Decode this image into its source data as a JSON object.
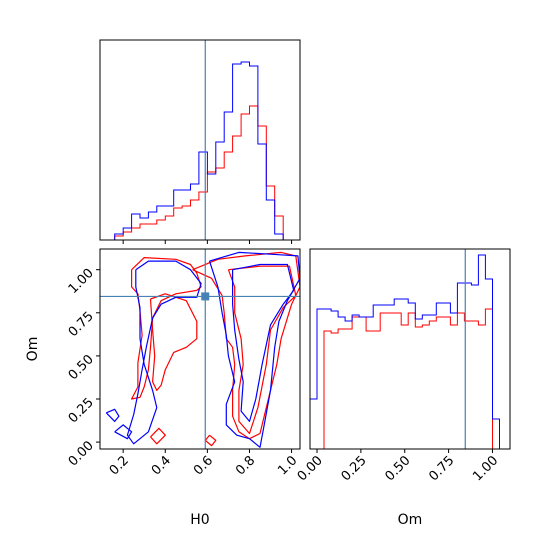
{
  "chart_data": {
    "type": "corner",
    "parameters": [
      "H0",
      "Om"
    ],
    "truths": {
      "H0": 0.59,
      "Om": 0.845
    },
    "colors": {
      "series_a": "#ff0000",
      "series_b": "#0000ff",
      "truth": "#4682b4"
    },
    "panels": [
      {
        "id": "hist_H0",
        "type": "histogram",
        "parameter": "H0",
        "xlim": [
          0.09,
          1.04
        ],
        "ylim": [
          0,
          1.0
        ],
        "xticks": [
          0.2,
          0.4,
          0.6,
          0.8,
          1.0
        ],
        "bins": [
          0.12,
          0.16,
          0.2,
          0.24,
          0.28,
          0.32,
          0.36,
          0.4,
          0.44,
          0.48,
          0.52,
          0.56,
          0.6,
          0.64,
          0.68,
          0.72,
          0.76,
          0.8,
          0.84,
          0.88,
          0.92,
          0.96,
          1.0,
          1.04
        ],
        "series": [
          {
            "values": [
              0.0,
              0.02,
              0.04,
              0.06,
              0.08,
              0.08,
              0.1,
              0.12,
              0.16,
              0.17,
              0.2,
              0.24,
              0.34,
              0.36,
              0.44,
              0.52,
              0.63,
              0.67,
              0.57,
              0.27,
              0.12,
              0.0,
              0.0
            ]
          },
          {
            "values": [
              0.0,
              0.03,
              0.06,
              0.13,
              0.11,
              0.14,
              0.17,
              0.17,
              0.25,
              0.25,
              0.28,
              0.44,
              0.33,
              0.49,
              0.64,
              0.88,
              0.89,
              0.87,
              0.48,
              0.2,
              0.03,
              0.0,
              0.0
            ]
          }
        ]
      },
      {
        "id": "hist_Om",
        "type": "histogram",
        "parameter": "Om",
        "xlim": [
          -0.04,
          1.1
        ],
        "ylim": [
          0,
          1.0
        ],
        "xticks": [
          "0.00",
          "0.25",
          "0.50",
          "0.75",
          "1.00"
        ],
        "xtick_values": [
          0.0,
          0.25,
          0.5,
          0.75,
          1.0
        ],
        "xlabel": "Om",
        "bins": [
          -0.04,
          0.0,
          0.04,
          0.08,
          0.12,
          0.16,
          0.2,
          0.24,
          0.28,
          0.32,
          0.36,
          0.4,
          0.44,
          0.48,
          0.52,
          0.56,
          0.6,
          0.64,
          0.68,
          0.72,
          0.76,
          0.8,
          0.84,
          0.88,
          0.92,
          0.96,
          1.0,
          1.04,
          1.08
        ],
        "series": [
          {
            "values": [
              0.0,
              0.0,
              0.59,
              0.58,
              0.6,
              0.6,
              0.66,
              0.66,
              0.59,
              0.59,
              0.68,
              0.68,
              0.68,
              0.62,
              0.68,
              0.61,
              0.62,
              0.64,
              0.66,
              0.66,
              0.62,
              0.68,
              0.64,
              0.64,
              0.62,
              0.7,
              0.0,
              0.0
            ]
          },
          {
            "values": [
              0.25,
              0.7,
              0.7,
              0.69,
              0.66,
              0.64,
              0.67,
              0.66,
              0.66,
              0.72,
              0.72,
              0.72,
              0.75,
              0.75,
              0.73,
              0.65,
              0.67,
              0.67,
              0.73,
              0.73,
              0.68,
              0.83,
              0.83,
              0.82,
              0.97,
              0.85,
              0.15,
              0.0
            ]
          }
        ]
      },
      {
        "id": "joint_H0_Om",
        "type": "contour",
        "xparam": "H0",
        "yparam": "Om",
        "xlim": [
          0.09,
          1.04
        ],
        "ylim": [
          -0.04,
          1.12
        ],
        "xticks": [
          0.2,
          0.4,
          0.6,
          0.8,
          1.0
        ],
        "yticks": [
          "0.00",
          "0.25",
          "0.50",
          "0.75",
          "1.00"
        ],
        "ytick_values": [
          0.0,
          0.25,
          0.5,
          0.75,
          1.0
        ],
        "xlabel": "H0",
        "ylabel": "Om",
        "series": [
          {
            "contours": [
              [
                [
                  0.24,
                  1.0
                ],
                [
                  0.3,
                  1.07
                ],
                [
                  0.45,
                  1.06
                ],
                [
                  0.52,
                  1.03
                ],
                [
                  0.55,
                  0.98
                ],
                [
                  0.57,
                  0.9
                ],
                [
                  0.55,
                  0.88
                ],
                [
                  0.45,
                  0.86
                ],
                [
                  0.38,
                  0.82
                ],
                [
                  0.34,
                  0.72
                ],
                [
                  0.33,
                  0.55
                ],
                [
                  0.32,
                  0.42
                ],
                [
                  0.3,
                  0.32
                ],
                [
                  0.28,
                  0.26
                ],
                [
                  0.24,
                  0.25
                ],
                [
                  0.27,
                  0.32
                ],
                [
                  0.27,
                  0.46
                ],
                [
                  0.29,
                  0.62
                ],
                [
                  0.28,
                  0.76
                ],
                [
                  0.27,
                  0.86
                ],
                [
                  0.24,
                  0.9
                ],
                [
                  0.24,
                  1.0
                ]
              ],
              [
                [
                  0.33,
                  0.83
                ],
                [
                  0.4,
                  0.86
                ],
                [
                  0.5,
                  0.82
                ],
                [
                  0.55,
                  0.7
                ],
                [
                  0.55,
                  0.6
                ],
                [
                  0.5,
                  0.55
                ],
                [
                  0.44,
                  0.52
                ],
                [
                  0.4,
                  0.42
                ],
                [
                  0.38,
                  0.33
                ],
                [
                  0.36,
                  0.3
                ],
                [
                  0.34,
                  0.35
                ],
                [
                  0.35,
                  0.5
                ],
                [
                  0.34,
                  0.65
                ],
                [
                  0.33,
                  0.83
                ]
              ],
              [
                [
                  0.53,
                  1.0
                ],
                [
                  0.65,
                  1.06
                ],
                [
                  0.78,
                  1.08
                ],
                [
                  0.95,
                  1.1
                ],
                [
                  1.02,
                  1.08
                ],
                [
                  1.04,
                  0.9
                ],
                [
                  1.0,
                  0.8
                ],
                [
                  0.95,
                  0.6
                ],
                [
                  0.93,
                  0.45
                ],
                [
                  0.88,
                  0.2
                ],
                [
                  0.85,
                  0.05
                ],
                [
                  0.8,
                  0.02
                ],
                [
                  0.75,
                  0.06
                ],
                [
                  0.72,
                  0.15
                ],
                [
                  0.72,
                  0.3
                ],
                [
                  0.73,
                  0.45
                ],
                [
                  0.72,
                  0.55
                ],
                [
                  0.69,
                  0.6
                ],
                [
                  0.68,
                  0.75
                ],
                [
                  0.67,
                  0.85
                ],
                [
                  0.62,
                  0.95
                ],
                [
                  0.53,
                  1.0
                ]
              ],
              [
                [
                  0.7,
                  1.0
                ],
                [
                  0.85,
                  1.02
                ],
                [
                  0.99,
                  1.02
                ],
                [
                  1.02,
                  0.85
                ],
                [
                  0.96,
                  0.78
                ],
                [
                  0.9,
                  0.65
                ],
                [
                  0.88,
                  0.45
                ],
                [
                  0.84,
                  0.2
                ],
                [
                  0.8,
                  0.05
                ],
                [
                  0.75,
                  0.12
                ],
                [
                  0.75,
                  0.3
                ],
                [
                  0.77,
                  0.45
                ],
                [
                  0.76,
                  0.6
                ],
                [
                  0.73,
                  0.75
                ],
                [
                  0.73,
                  0.9
                ],
                [
                  0.7,
                  1.0
                ]
              ],
              [
                [
                  0.33,
                  0.03
                ],
                [
                  0.37,
                  0.08
                ],
                [
                  0.4,
                  0.04
                ],
                [
                  0.36,
                  -0.01
                ],
                [
                  0.33,
                  0.03
                ]
              ],
              [
                [
                  0.61,
                  0.04
                ],
                [
                  0.64,
                  0.01
                ],
                [
                  0.62,
                  -0.02
                ],
                [
                  0.59,
                  0.01
                ],
                [
                  0.61,
                  0.04
                ]
              ]
            ]
          },
          {
            "contours": [
              [
                [
                  0.26,
                  1.0
                ],
                [
                  0.32,
                  1.05
                ],
                [
                  0.45,
                  1.05
                ],
                [
                  0.52,
                  1.0
                ],
                [
                  0.57,
                  0.92
                ],
                [
                  0.55,
                  0.84
                ],
                [
                  0.45,
                  0.84
                ],
                [
                  0.38,
                  0.8
                ],
                [
                  0.34,
                  0.72
                ],
                [
                  0.31,
                  0.55
                ],
                [
                  0.29,
                  0.42
                ],
                [
                  0.27,
                  0.28
                ],
                [
                  0.25,
                  0.16
                ],
                [
                  0.22,
                  0.04
                ],
                [
                  0.25,
                  -0.01
                ],
                [
                  0.32,
                  0.06
                ],
                [
                  0.36,
                  0.2
                ],
                [
                  0.34,
                  0.3
                ],
                [
                  0.3,
                  0.45
                ],
                [
                  0.28,
                  0.6
                ],
                [
                  0.28,
                  0.78
                ],
                [
                  0.26,
                  0.9
                ],
                [
                  0.26,
                  1.0
                ]
              ],
              [
                [
                  0.12,
                  0.17
                ],
                [
                  0.16,
                  0.19
                ],
                [
                  0.18,
                  0.15
                ],
                [
                  0.16,
                  0.12
                ],
                [
                  0.12,
                  0.17
                ]
              ],
              [
                [
                  0.16,
                  0.06
                ],
                [
                  0.2,
                  0.1
                ],
                [
                  0.24,
                  0.06
                ],
                [
                  0.22,
                  0.02
                ],
                [
                  0.16,
                  0.06
                ]
              ],
              [
                [
                  0.61,
                  1.05
                ],
                [
                  0.75,
                  1.1
                ],
                [
                  0.9,
                  1.09
                ],
                [
                  1.03,
                  1.08
                ],
                [
                  1.04,
                  0.95
                ],
                [
                  0.98,
                  0.82
                ],
                [
                  0.94,
                  0.7
                ],
                [
                  0.92,
                  0.55
                ],
                [
                  0.9,
                  0.3
                ],
                [
                  0.87,
                  0.1
                ],
                [
                  0.85,
                  -0.03
                ],
                [
                  0.8,
                  0.02
                ],
                [
                  0.74,
                  0.04
                ],
                [
                  0.69,
                  0.1
                ],
                [
                  0.69,
                  0.22
                ],
                [
                  0.73,
                  0.35
                ],
                [
                  0.7,
                  0.5
                ],
                [
                  0.69,
                  0.62
                ],
                [
                  0.67,
                  0.75
                ],
                [
                  0.65,
                  0.9
                ],
                [
                  0.61,
                  1.05
                ]
              ],
              [
                [
                  0.72,
                  1.0
                ],
                [
                  0.85,
                  1.03
                ],
                [
                  0.98,
                  1.03
                ],
                [
                  1.01,
                  0.88
                ],
                [
                  0.96,
                  0.8
                ],
                [
                  0.9,
                  0.68
                ],
                [
                  0.86,
                  0.45
                ],
                [
                  0.83,
                  0.25
                ],
                [
                  0.8,
                  0.12
                ],
                [
                  0.76,
                  0.18
                ],
                [
                  0.77,
                  0.35
                ],
                [
                  0.75,
                  0.48
                ],
                [
                  0.73,
                  0.65
                ],
                [
                  0.72,
                  0.8
                ],
                [
                  0.72,
                  1.0
                ]
              ]
            ]
          }
        ]
      }
    ]
  }
}
